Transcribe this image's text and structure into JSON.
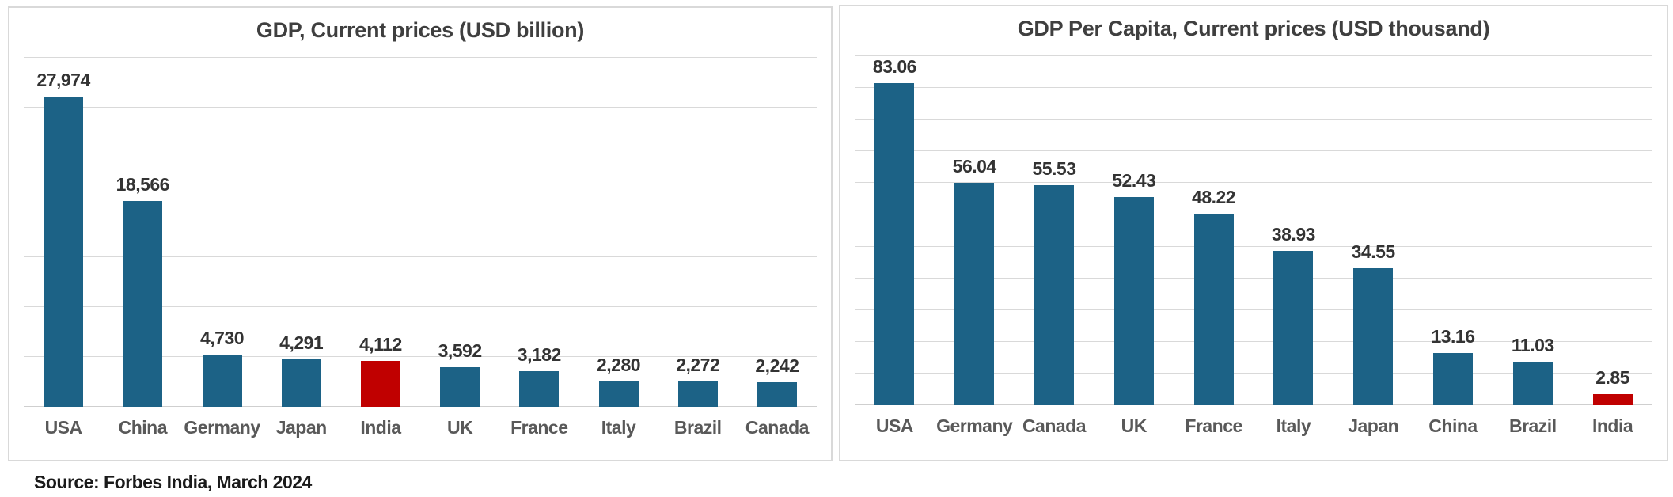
{
  "page": {
    "background": "#ffffff",
    "source_note": "Source: Forbes India, March 2024"
  },
  "colors": {
    "bar": "#1c6286",
    "highlight_bar": "#c00000",
    "title_text": "#3f3f3f",
    "value_label_text": "#333333",
    "category_label_text": "#595959",
    "gridline": "#d9d9d9",
    "panel_border": "#d9d9d9"
  },
  "chart_data": [
    {
      "type": "bar",
      "title": "GDP, Current prices (USD billion)",
      "xlabel": "",
      "ylabel": "",
      "categories": [
        "USA",
        "China",
        "Germany",
        "Japan",
        "India",
        "UK",
        "France",
        "Italy",
        "Brazil",
        "Canada"
      ],
      "values": [
        27974,
        18566,
        4730,
        4291,
        4112,
        3592,
        3182,
        2280,
        2272,
        2242
      ],
      "value_labels": [
        "27,974",
        "18,566",
        "4,730",
        "4,291",
        "4,112",
        "3,592",
        "3,182",
        "2,280",
        "2,272",
        "2,242"
      ],
      "highlight_category": "India",
      "ylim": [
        0,
        31500
      ],
      "gridline_interval": 4500,
      "grid": true,
      "legend": false,
      "data_labels": true
    },
    {
      "type": "bar",
      "title": "GDP Per Capita, Current prices (USD thousand)",
      "xlabel": "",
      "ylabel": "",
      "categories": [
        "USA",
        "Germany",
        "Canada",
        "UK",
        "France",
        "Italy",
        "Japan",
        "China",
        "Brazil",
        "India"
      ],
      "values": [
        83.06,
        56.04,
        55.53,
        52.43,
        48.22,
        38.93,
        34.55,
        13.16,
        11.03,
        2.85
      ],
      "value_labels": [
        "83.06",
        "56.04",
        "55.53",
        "52.43",
        "48.22",
        "38.93",
        "34.55",
        "13.16",
        "11.03",
        "2.85"
      ],
      "highlight_category": "India",
      "ylim": [
        0,
        88
      ],
      "gridline_interval": 8,
      "grid": true,
      "legend": false,
      "data_labels": true
    }
  ]
}
